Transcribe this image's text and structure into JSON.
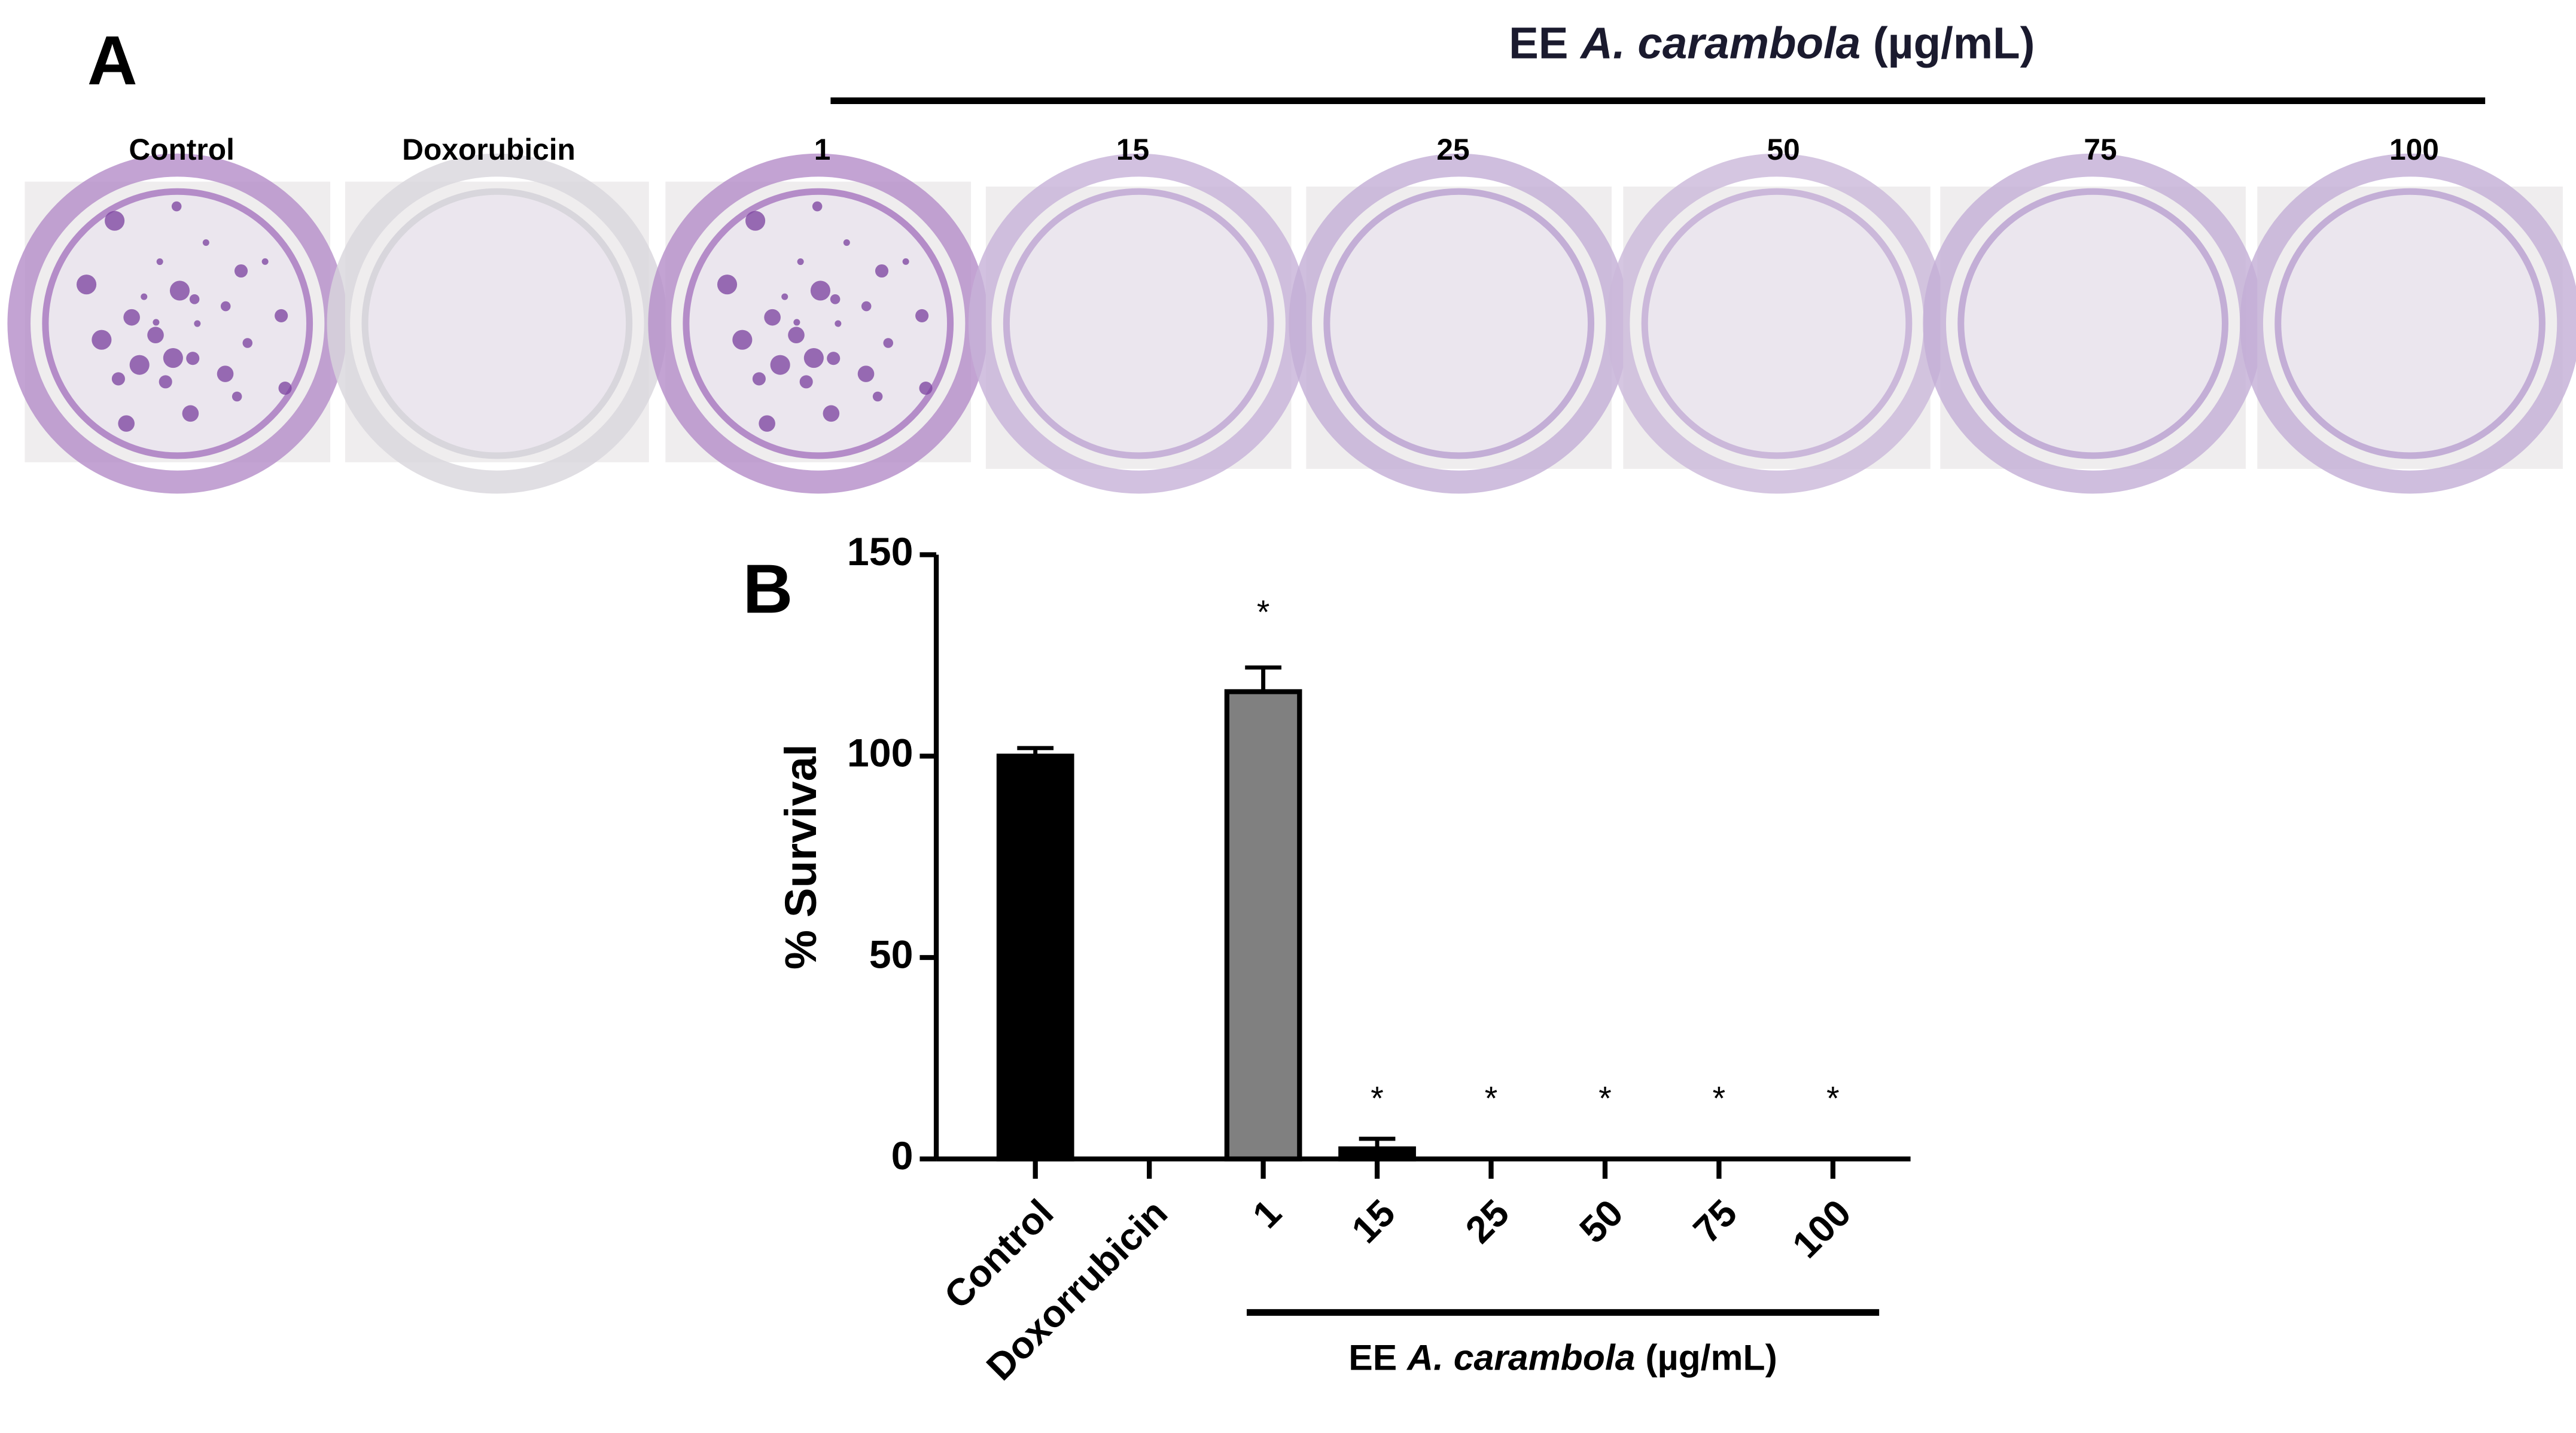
{
  "panel_a": {
    "label": "A",
    "header": {
      "prefix": "EE",
      "species": "A. carambola",
      "unit": "(µg/mL)"
    },
    "wells": [
      "Control",
      "Doxorubicin",
      "1",
      "15",
      "25",
      "50",
      "75",
      "100"
    ]
  },
  "chart_data": {
    "type": "bar",
    "label": "B",
    "y_label": "% Survival",
    "categories": [
      "Control",
      "Doxorrubicin",
      "1",
      "15",
      "25",
      "50",
      "75",
      "100"
    ],
    "values": [
      100,
      0,
      116,
      2.5,
      0,
      0,
      0,
      0
    ],
    "errors": [
      2,
      0,
      6,
      2.5,
      0,
      0,
      0,
      0
    ],
    "colors": [
      "#000000",
      "#000000",
      "#808080",
      "#000000",
      "#000000",
      "#000000",
      "#000000",
      "#000000"
    ],
    "significance": [
      null,
      null,
      "*",
      "*",
      "*",
      "*",
      "*",
      "*"
    ],
    "group_label": {
      "prefix": "EE",
      "species": "A. carambola",
      "unit": "(µg/mL)"
    },
    "ylim": [
      0,
      150
    ],
    "yticks": [
      0,
      50,
      100,
      150
    ]
  }
}
